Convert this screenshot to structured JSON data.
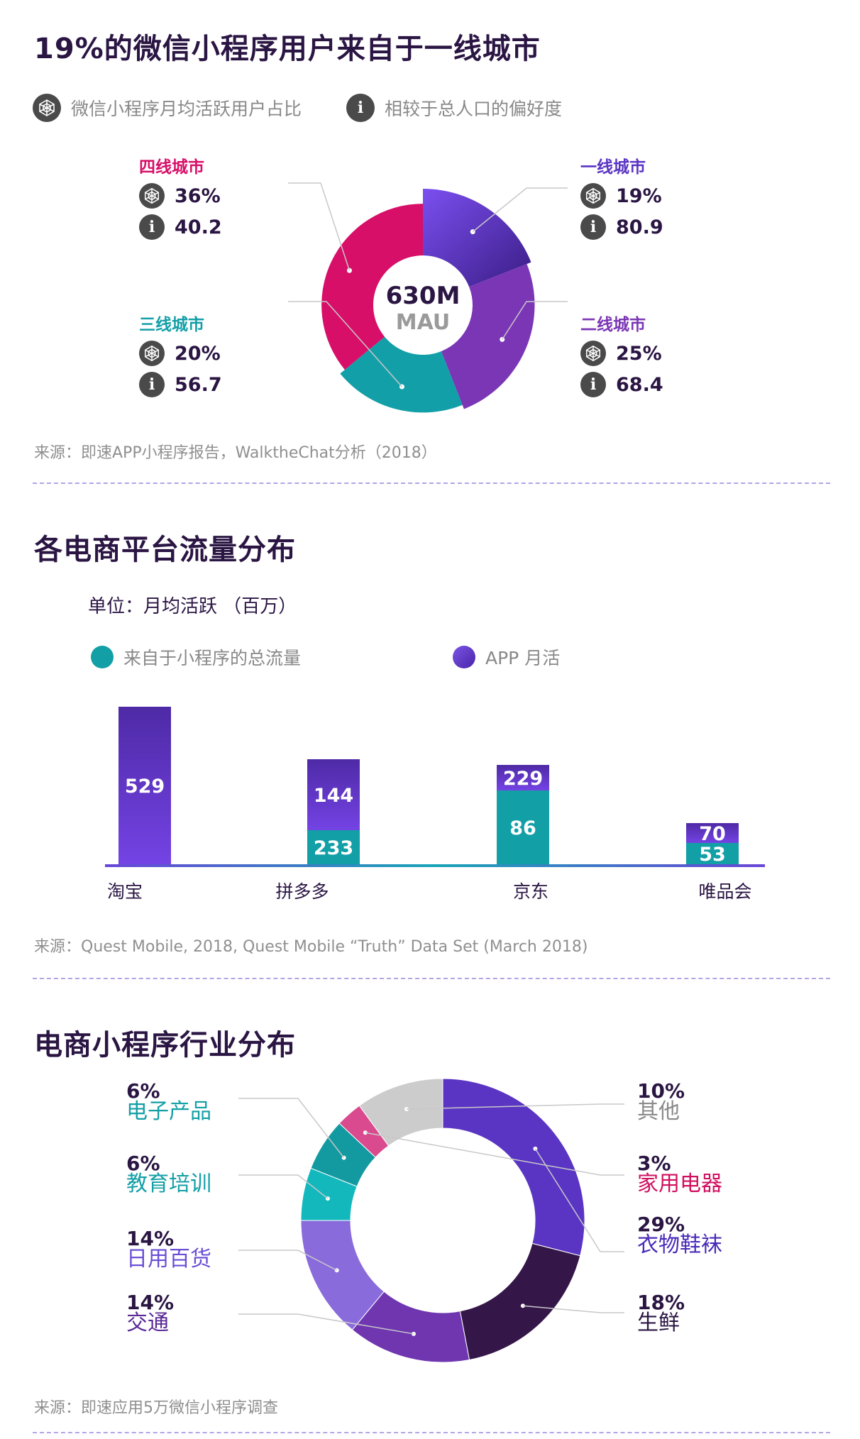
{
  "section1": {
    "title": "19%的微信小程序用户来自于一线城市",
    "legend": [
      {
        "icon": "radar-icon",
        "label": "微信小程序月均活跃用户占比"
      },
      {
        "icon": "info-icon",
        "label": "相较于总人口的偏好度"
      }
    ],
    "center_line1": "630M",
    "center_line2": "MAU",
    "source": "来源：即速APP小程序报告，WalktheChat分析（2018）"
  },
  "section2": {
    "title": "各电商平台流量分布",
    "unit": "单位：月均活跃 （百万）",
    "legend": [
      {
        "label": "来自于小程序的总流量",
        "color": "#129fa6"
      },
      {
        "label": "APP 月活",
        "color": "#6a3fd3"
      }
    ],
    "source": "来源：Quest Mobile, 2018, Quest Mobile “Truth” Data Set (March 2018)"
  },
  "section3": {
    "title": "电商小程序行业分布",
    "source": "来源：即速应用5万微信小程序调查"
  },
  "chart_data": [
    {
      "type": "pie",
      "categories": [
        "一线城市",
        "二线城市",
        "三线城市",
        "四线城市"
      ],
      "values": [
        19,
        25,
        20,
        36
      ],
      "preference": [
        80.9,
        68.4,
        56.7,
        40.2
      ],
      "value_labels": [
        "19%",
        "25%",
        "20%",
        "36%"
      ],
      "preference_labels": [
        "80.9",
        "68.4",
        "56.7",
        "40.2"
      ],
      "colors": [
        "#6a3fd3",
        "#7b36b6",
        "#139fa8",
        "#d70f68"
      ]
    },
    {
      "type": "bar",
      "categories": [
        "淘宝",
        "拼多多",
        "京东",
        "唯品会"
      ],
      "series": [
        {
          "name": "APP 月活",
          "values": [
            529,
            144,
            229,
            70
          ]
        },
        {
          "name": "来自于小程序的总流量",
          "values": [
            null,
            233,
            86,
            53
          ]
        }
      ]
    },
    {
      "type": "pie",
      "categories": [
        "衣物鞋袜",
        "生鲜",
        "交通",
        "日用百货",
        "教育培训",
        "电子产品",
        "家用电器",
        "其他"
      ],
      "values": [
        29,
        18,
        14,
        14,
        6,
        6,
        3,
        10
      ],
      "value_labels": [
        "29%",
        "18%",
        "14%",
        "14%",
        "6%",
        "6%",
        "3%",
        "10%"
      ],
      "colors": [
        "#5a35c3",
        "#351649",
        "#6f36b0",
        "#8a6bdc",
        "#13b8bd",
        "#139aa1",
        "#d94b8e",
        "#cccccc"
      ],
      "label_colors": [
        "#4a2ab8",
        "#2a1543",
        "#5a2a96",
        "#6a4ed6",
        "#139fa6",
        "#139fa6",
        "#d0105f",
        "#8a8a8a"
      ]
    }
  ]
}
